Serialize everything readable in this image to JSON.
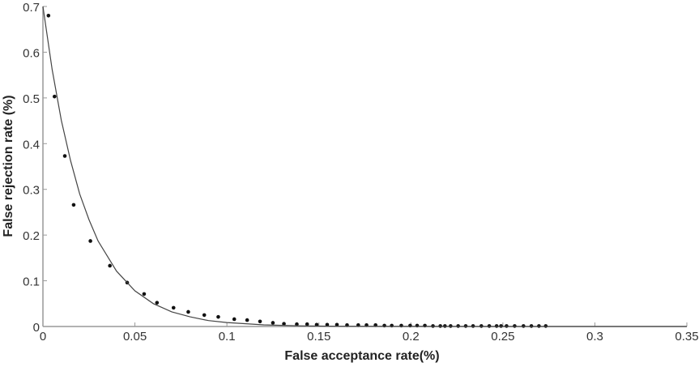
{
  "chart_data": {
    "type": "scatter",
    "title": "",
    "xlabel": "False acceptance rate(%)",
    "ylabel": "False rejection rate (%)",
    "xlim": [
      0,
      0.35
    ],
    "ylim": [
      0,
      0.7
    ],
    "xticks": [
      "0",
      "0.05",
      "0.1",
      "0.15",
      "0.2",
      "0.25",
      "0.3",
      "0.35"
    ],
    "yticks": [
      "0",
      "0.1",
      "0.2",
      "0.3",
      "0.4",
      "0.5",
      "0.6",
      "0.7"
    ],
    "grid": false,
    "legend": "none",
    "series": [
      {
        "type": "scatter",
        "marker": "dot",
        "color": "#111111",
        "x": [
          0.003,
          0.0063,
          0.0119,
          0.0167,
          0.0258,
          0.0364,
          0.0458,
          0.055,
          0.062,
          0.071,
          0.079,
          0.0877,
          0.0953,
          0.104,
          0.111,
          0.118,
          0.125,
          0.131,
          0.138,
          0.1436,
          0.1488,
          0.1545,
          0.1598,
          0.1653,
          0.1714,
          0.1759,
          0.1808,
          0.1856,
          0.1896,
          0.1948,
          0.1996,
          0.2034,
          0.2076,
          0.212,
          0.216,
          0.2185,
          0.2216,
          0.2257,
          0.2298,
          0.2338,
          0.2383,
          0.2426,
          0.2466,
          0.249,
          0.252,
          0.2564,
          0.2612,
          0.2655,
          0.2696,
          0.2733
        ],
        "y": [
          0.68,
          0.503,
          0.373,
          0.266,
          0.187,
          0.133,
          0.096,
          0.071,
          0.052,
          0.041,
          0.032,
          0.025,
          0.021,
          0.016,
          0.014,
          0.011,
          0.008,
          0.006,
          0.005,
          0.005,
          0.004,
          0.004,
          0.004,
          0.003,
          0.003,
          0.003,
          0.003,
          0.002,
          0.002,
          0.002,
          0.002,
          0.002,
          0.002,
          0.001,
          0.001,
          0.001,
          0.001,
          0.001,
          0.001,
          0.001,
          0.001,
          0.001,
          0.001,
          0.001,
          0.001,
          0.001,
          0.001,
          0.001,
          0.001,
          0.001
        ]
      },
      {
        "type": "line",
        "color": "#444444",
        "x": [
          0,
          0.005,
          0.01,
          0.015,
          0.02,
          0.025,
          0.03,
          0.04,
          0.05,
          0.06,
          0.07,
          0.08,
          0.09,
          0.1,
          0.12,
          0.14,
          0.16,
          0.2,
          0.25,
          0.35
        ],
        "y": [
          0.7,
          0.562,
          0.451,
          0.363,
          0.29,
          0.234,
          0.187,
          0.121,
          0.078,
          0.05,
          0.032,
          0.021,
          0.013,
          0.0087,
          0.0036,
          0.0015,
          0.0006,
          0.0001,
          0,
          0
        ]
      }
    ]
  }
}
